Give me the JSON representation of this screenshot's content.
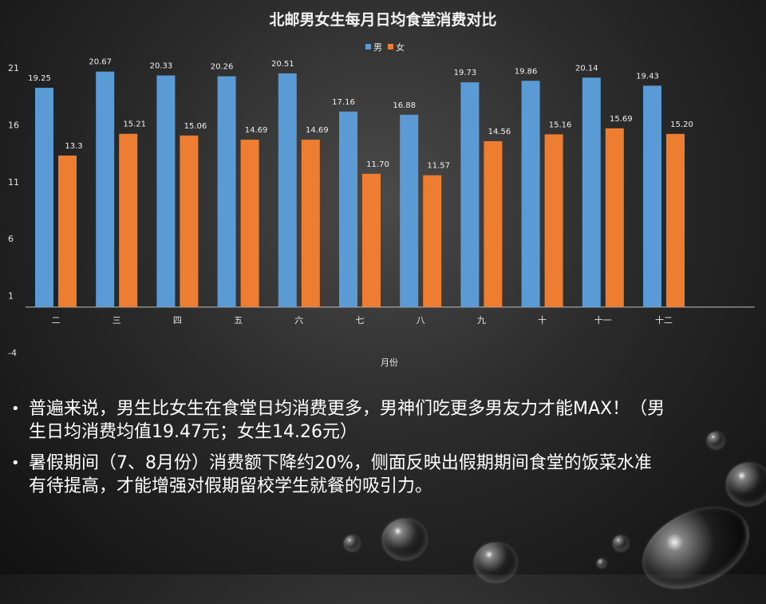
{
  "chart_data": {
    "type": "bar",
    "title": "北邮男女生每月日均食堂消费对比",
    "xlabel": "月份",
    "ylabel": "",
    "categories": [
      "二",
      "三",
      "四",
      "五",
      "六",
      "七",
      "八",
      "九",
      "十",
      "十一",
      "十二"
    ],
    "series": [
      {
        "name": "男",
        "values": [
          19.25,
          20.67,
          20.33,
          20.26,
          20.51,
          17.16,
          16.88,
          19.73,
          19.86,
          20.14,
          19.43
        ],
        "labels": [
          "19.25",
          "20.67",
          "20.33",
          "20.26",
          "20.51",
          "17.16",
          "16.88",
          "19.73",
          "19.86",
          "20.14",
          "19.43"
        ],
        "color": "#5b9bd5"
      },
      {
        "name": "女",
        "values": [
          13.3,
          15.21,
          15.06,
          14.69,
          14.69,
          11.7,
          11.57,
          14.56,
          15.16,
          15.69,
          15.2
        ],
        "labels": [
          "13.3",
          "15.21",
          "15.06",
          "14.69",
          "14.69",
          "11.70",
          "11.57",
          "14.56",
          "15.16",
          "15.69",
          "15.20"
        ],
        "color": "#ed7d31"
      }
    ],
    "yticks": [
      -4,
      1,
      6,
      11,
      16,
      21
    ],
    "ylim": [
      -4,
      21
    ],
    "baseline": 0,
    "legend_position": "top-center",
    "grid": false
  },
  "notes": [
    "普遍来说，男生比女生在食堂日均消费更多，男神们吃更多男友力才能MAX！（男生日均消费均值19.47元；女生14.26元）",
    "暑假期间（7、8月份）消费额下降约20%，侧面反映出假期期间食堂的饭菜水准有待提高，才能增强对假期留校学生就餐的吸引力。"
  ],
  "bullet_symbol": "•"
}
